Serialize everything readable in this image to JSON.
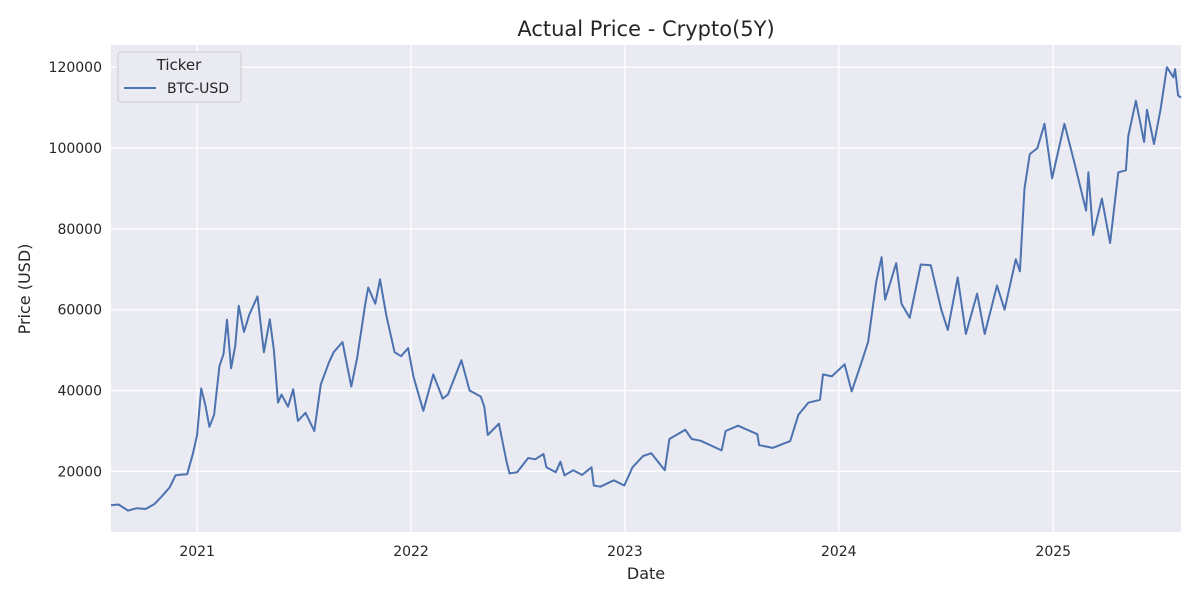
{
  "chart_data": {
    "type": "line",
    "title": "Actual Price - Crypto(5Y)",
    "xlabel": "Date",
    "ylabel": "Price (USD)",
    "xlim": [
      "2020-08-07",
      "2025-08-07"
    ],
    "ylim": [
      5000,
      125500
    ],
    "x_ticks": [
      "2021-01-01",
      "2022-01-01",
      "2023-01-01",
      "2024-01-01",
      "2025-01-01"
    ],
    "x_tick_labels": [
      "2021",
      "2022",
      "2023",
      "2024",
      "2025"
    ],
    "y_ticks": [
      20000,
      40000,
      60000,
      80000,
      100000,
      120000
    ],
    "y_tick_labels": [
      "20000",
      "40000",
      "60000",
      "80000",
      "100000",
      "120000"
    ],
    "grid": true,
    "background": "#eaeaf2",
    "grid_color": "#ffffff",
    "legend": {
      "title": "Ticker",
      "placement": "top-left"
    },
    "series": [
      {
        "name": "BTC-USD",
        "color": "#4c72b0",
        "points": [
          [
            "2020-08-07",
            11600
          ],
          [
            "2020-08-20",
            11800
          ],
          [
            "2020-09-05",
            10300
          ],
          [
            "2020-09-20",
            10900
          ],
          [
            "2020-10-05",
            10700
          ],
          [
            "2020-10-20",
            11900
          ],
          [
            "2020-11-01",
            13700
          ],
          [
            "2020-11-15",
            16000
          ],
          [
            "2020-11-25",
            19000
          ],
          [
            "2020-12-05",
            19200
          ],
          [
            "2020-12-15",
            19300
          ],
          [
            "2020-12-25",
            24500
          ],
          [
            "2021-01-01",
            29000
          ],
          [
            "2021-01-08",
            40500
          ],
          [
            "2021-01-15",
            36500
          ],
          [
            "2021-01-22",
            31000
          ],
          [
            "2021-01-30",
            34000
          ],
          [
            "2021-02-08",
            46000
          ],
          [
            "2021-02-15",
            49000
          ],
          [
            "2021-02-21",
            57500
          ],
          [
            "2021-02-28",
            45500
          ],
          [
            "2021-03-07",
            51000
          ],
          [
            "2021-03-13",
            61000
          ],
          [
            "2021-03-22",
            54500
          ],
          [
            "2021-03-31",
            58800
          ],
          [
            "2021-04-14",
            63300
          ],
          [
            "2021-04-25",
            49500
          ],
          [
            "2021-05-05",
            57600
          ],
          [
            "2021-05-12",
            50000
          ],
          [
            "2021-05-19",
            37000
          ],
          [
            "2021-05-25",
            39000
          ],
          [
            "2021-06-05",
            36000
          ],
          [
            "2021-06-14",
            40300
          ],
          [
            "2021-06-22",
            32500
          ],
          [
            "2021-07-05",
            34500
          ],
          [
            "2021-07-20",
            30000
          ],
          [
            "2021-07-31",
            41500
          ],
          [
            "2021-08-14",
            47000
          ],
          [
            "2021-08-22",
            49500
          ],
          [
            "2021-09-06",
            52000
          ],
          [
            "2021-09-21",
            41000
          ],
          [
            "2021-10-01",
            48000
          ],
          [
            "2021-10-15",
            61500
          ],
          [
            "2021-10-20",
            65500
          ],
          [
            "2021-11-01",
            61500
          ],
          [
            "2021-11-09",
            67500
          ],
          [
            "2021-11-20",
            58500
          ],
          [
            "2021-12-04",
            49500
          ],
          [
            "2021-12-15",
            48500
          ],
          [
            "2021-12-27",
            50500
          ],
          [
            "2022-01-05",
            43500
          ],
          [
            "2022-01-22",
            35000
          ],
          [
            "2022-02-08",
            44000
          ],
          [
            "2022-02-24",
            38000
          ],
          [
            "2022-03-05",
            39000
          ],
          [
            "2022-03-28",
            47500
          ],
          [
            "2022-04-11",
            40000
          ],
          [
            "2022-04-30",
            38500
          ],
          [
            "2022-05-06",
            36000
          ],
          [
            "2022-05-12",
            29000
          ],
          [
            "2022-05-31",
            31800
          ],
          [
            "2022-06-13",
            22500
          ],
          [
            "2022-06-18",
            19500
          ],
          [
            "2022-07-01",
            19800
          ],
          [
            "2022-07-20",
            23300
          ],
          [
            "2022-08-01",
            23000
          ],
          [
            "2022-08-15",
            24300
          ],
          [
            "2022-08-20",
            21000
          ],
          [
            "2022-09-05",
            19800
          ],
          [
            "2022-09-13",
            22400
          ],
          [
            "2022-09-20",
            19000
          ],
          [
            "2022-10-05",
            20300
          ],
          [
            "2022-10-20",
            19100
          ],
          [
            "2022-11-05",
            21000
          ],
          [
            "2022-11-09",
            16500
          ],
          [
            "2022-11-20",
            16200
          ],
          [
            "2022-12-13",
            17800
          ],
          [
            "2022-12-31",
            16500
          ],
          [
            "2023-01-14",
            21000
          ],
          [
            "2023-02-01",
            23800
          ],
          [
            "2023-02-15",
            24500
          ],
          [
            "2023-03-10",
            20300
          ],
          [
            "2023-03-18",
            28000
          ],
          [
            "2023-04-14",
            30300
          ],
          [
            "2023-04-25",
            28000
          ],
          [
            "2023-05-10",
            27600
          ],
          [
            "2023-06-15",
            25200
          ],
          [
            "2023-06-22",
            30000
          ],
          [
            "2023-07-13",
            31300
          ],
          [
            "2023-08-15",
            29200
          ],
          [
            "2023-08-18",
            26500
          ],
          [
            "2023-09-10",
            25800
          ],
          [
            "2023-10-10",
            27500
          ],
          [
            "2023-10-24",
            34000
          ],
          [
            "2023-11-10",
            37000
          ],
          [
            "2023-11-30",
            37700
          ],
          [
            "2023-12-05",
            44000
          ],
          [
            "2023-12-20",
            43500
          ],
          [
            "2024-01-11",
            46500
          ],
          [
            "2024-01-23",
            39800
          ],
          [
            "2024-02-10",
            47500
          ],
          [
            "2024-02-20",
            52000
          ],
          [
            "2024-03-05",
            67000
          ],
          [
            "2024-03-14",
            73000
          ],
          [
            "2024-03-20",
            62500
          ],
          [
            "2024-04-08",
            71500
          ],
          [
            "2024-04-17",
            61500
          ],
          [
            "2024-05-01",
            58000
          ],
          [
            "2024-05-20",
            71200
          ],
          [
            "2024-06-06",
            71000
          ],
          [
            "2024-06-24",
            60000
          ],
          [
            "2024-07-05",
            55000
          ],
          [
            "2024-07-22",
            68000
          ],
          [
            "2024-08-05",
            54000
          ],
          [
            "2024-08-24",
            64000
          ],
          [
            "2024-09-06",
            54000
          ],
          [
            "2024-09-27",
            66000
          ],
          [
            "2024-10-10",
            60000
          ],
          [
            "2024-10-29",
            72500
          ],
          [
            "2024-11-05",
            69500
          ],
          [
            "2024-11-13",
            90000
          ],
          [
            "2024-11-22",
            98500
          ],
          [
            "2024-12-05",
            100000
          ],
          [
            "2024-12-17",
            106000
          ],
          [
            "2024-12-30",
            92500
          ],
          [
            "2025-01-20",
            106000
          ],
          [
            "2025-02-05",
            97000
          ],
          [
            "2025-02-26",
            84500
          ],
          [
            "2025-03-02",
            94000
          ],
          [
            "2025-03-10",
            78500
          ],
          [
            "2025-03-25",
            87500
          ],
          [
            "2025-04-08",
            76500
          ],
          [
            "2025-04-22",
            94000
          ],
          [
            "2025-05-05",
            94500
          ],
          [
            "2025-05-09",
            103000
          ],
          [
            "2025-05-22",
            111700
          ],
          [
            "2025-06-05",
            101500
          ],
          [
            "2025-06-10",
            109500
          ],
          [
            "2025-06-22",
            101000
          ],
          [
            "2025-07-03",
            109500
          ],
          [
            "2025-07-14",
            120000
          ],
          [
            "2025-07-25",
            117500
          ],
          [
            "2025-07-28",
            119500
          ],
          [
            "2025-08-02",
            113000
          ],
          [
            "2025-08-07",
            112500
          ]
        ]
      }
    ]
  }
}
